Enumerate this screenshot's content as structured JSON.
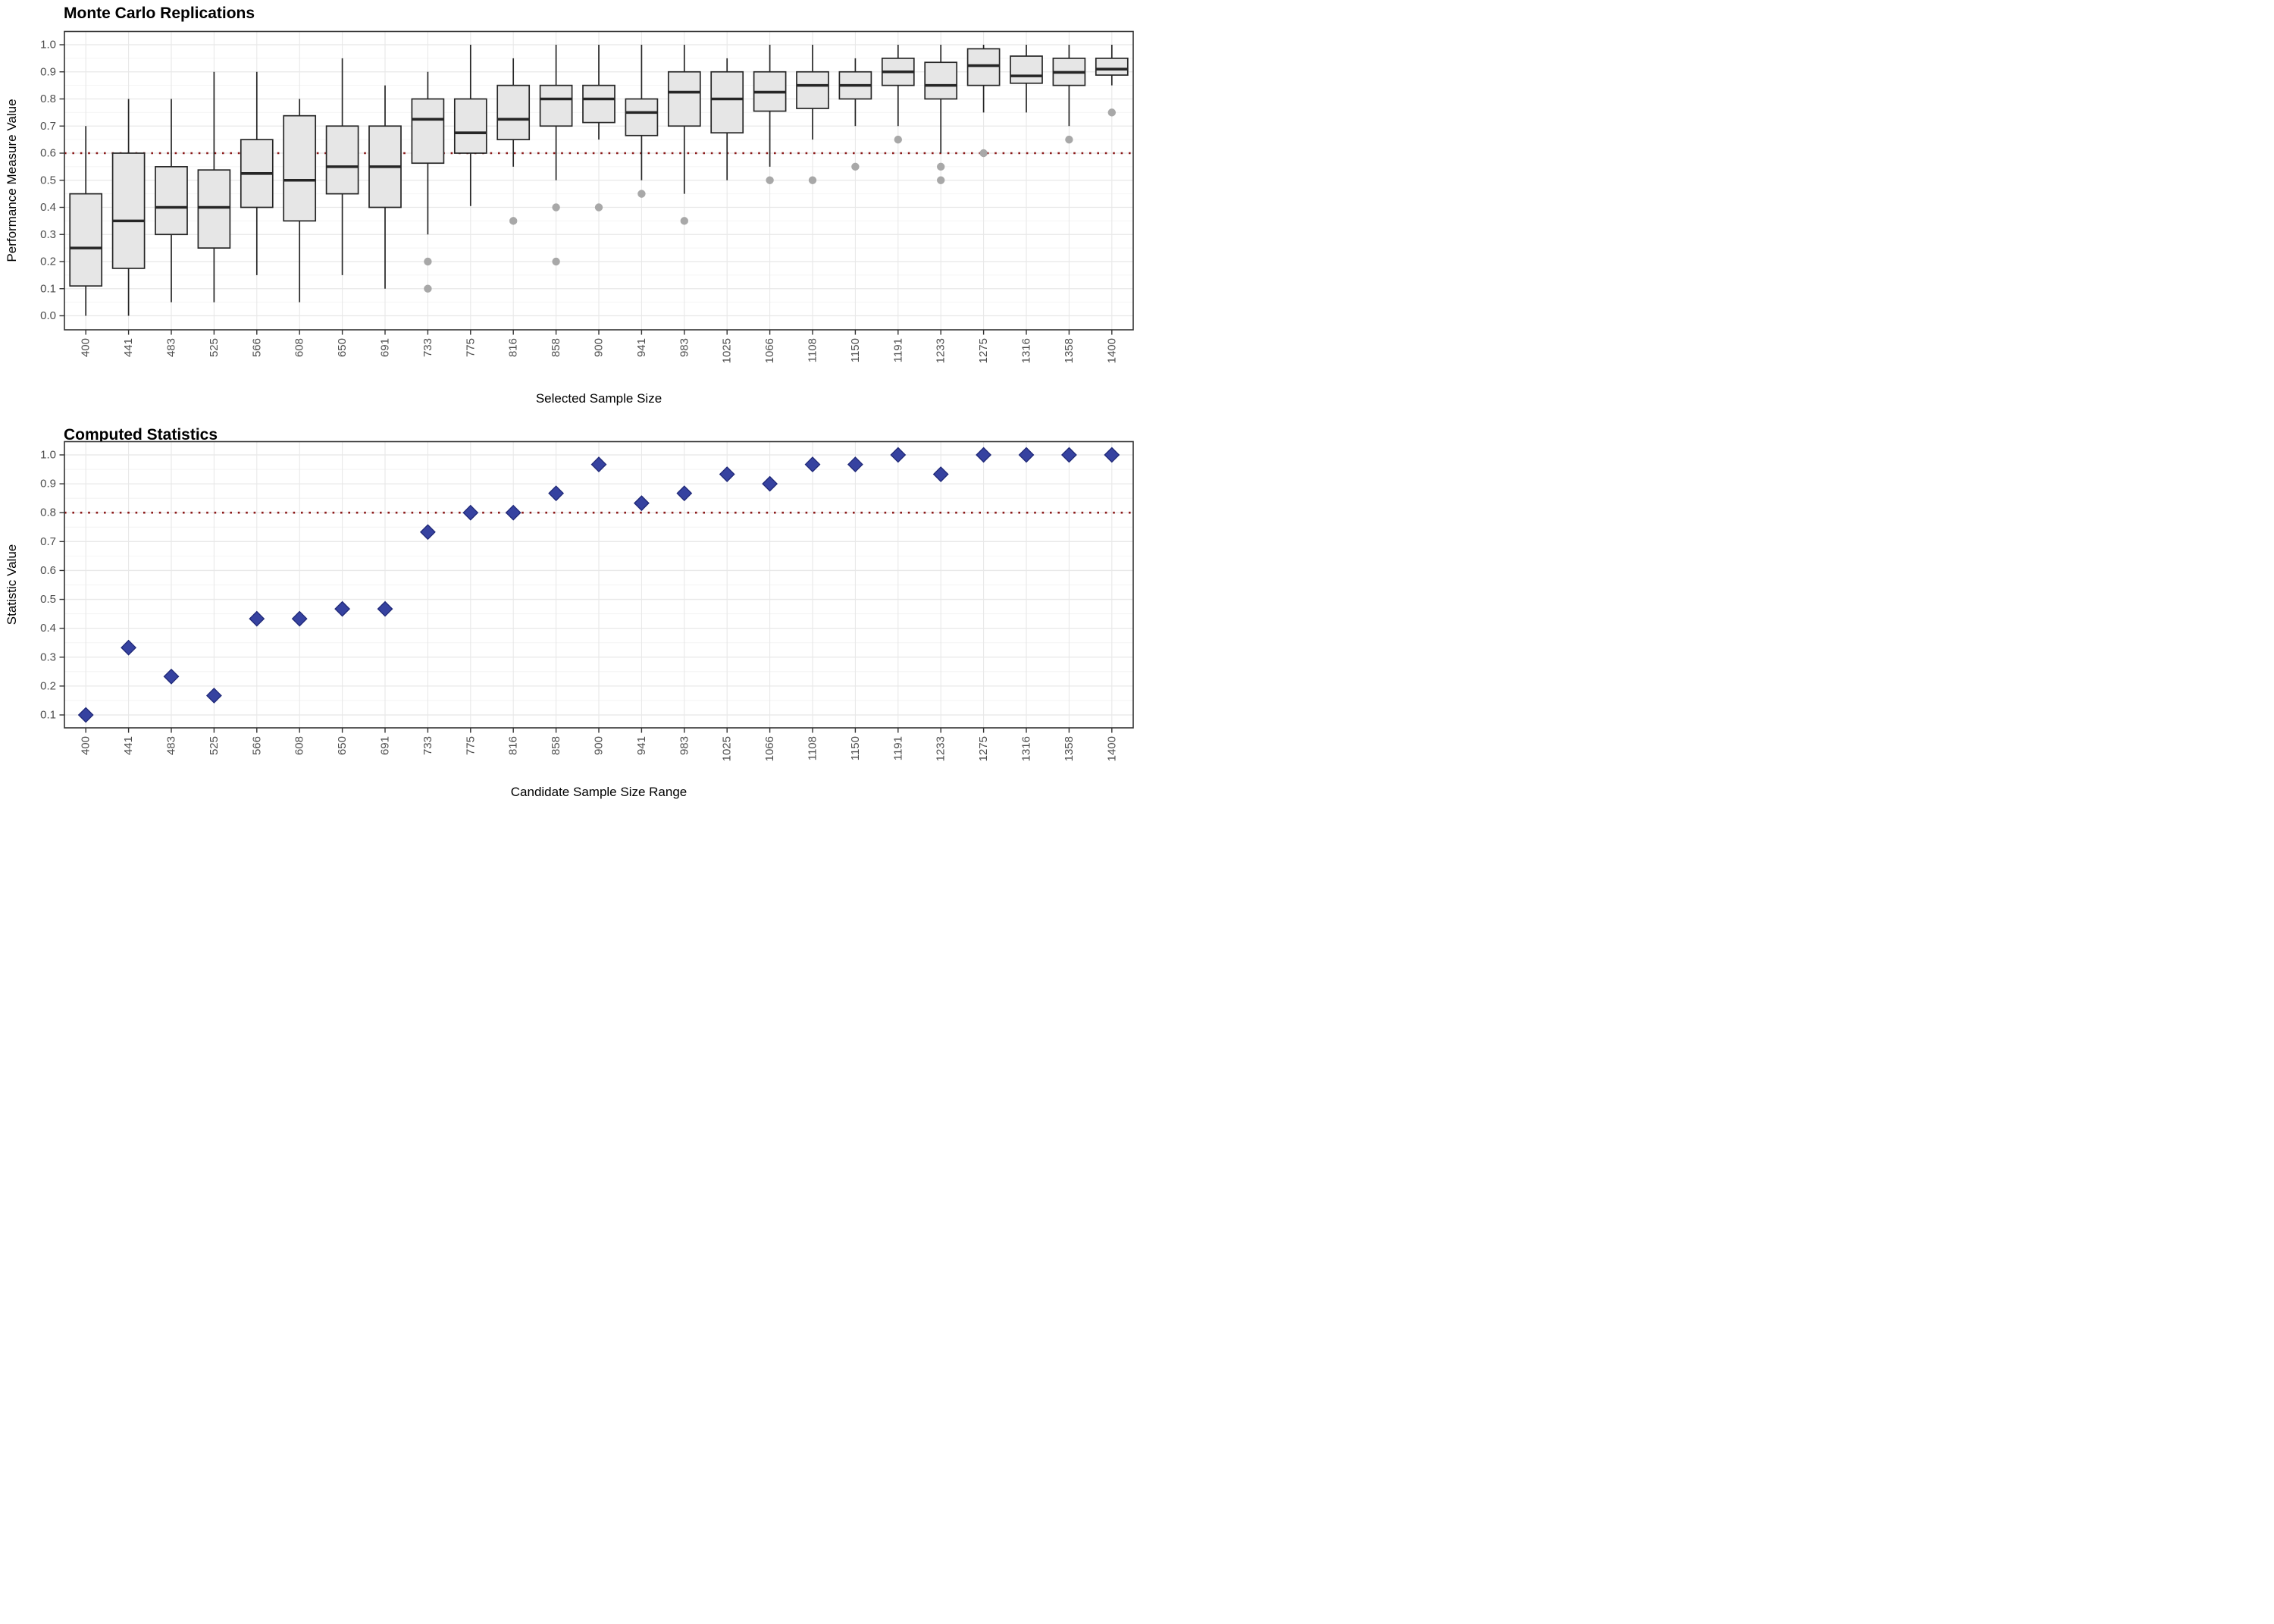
{
  "colors": {
    "panel_background": "#ffffff",
    "panel_border": "#333333",
    "grid_major": "#e8e8e8",
    "grid_minor": "#f4f4f4",
    "tick_mark": "#333333",
    "tick_text": "#4d4d4d",
    "box_fill": "#e6e6e6",
    "box_stroke": "#262626",
    "outlier": "#a8a8a8",
    "diamond_fill": "#3642a0",
    "diamond_stroke": "#1f2877",
    "ref_line": "#8B1A1A"
  },
  "chart_data": [
    {
      "type": "boxplot",
      "title": "Monte Carlo Replications",
      "xlabel": "Selected Sample Size",
      "ylabel": "Performance Measure Value",
      "ylim": [
        0.0,
        1.0
      ],
      "grid": true,
      "ref_line": {
        "y": 0.6,
        "style": "dotted"
      },
      "y_tick_labels": [
        "0.0",
        "0.1",
        "0.2",
        "0.3",
        "0.4",
        "0.5",
        "0.6",
        "0.7",
        "0.8",
        "0.9",
        "1.0"
      ],
      "categories": [
        "400",
        "441",
        "483",
        "525",
        "566",
        "608",
        "650",
        "691",
        "733",
        "775",
        "816",
        "858",
        "900",
        "941",
        "983",
        "1025",
        "1066",
        "1108",
        "1150",
        "1191",
        "1233",
        "1275",
        "1316",
        "1358",
        "1400"
      ],
      "boxes": [
        {
          "min": 0.0,
          "q1": 0.11,
          "median": 0.25,
          "q3": 0.45,
          "max": 0.7,
          "outliers": []
        },
        {
          "min": 0.0,
          "q1": 0.175,
          "median": 0.35,
          "q3": 0.6,
          "max": 0.8,
          "outliers": []
        },
        {
          "min": 0.05,
          "q1": 0.3,
          "median": 0.4,
          "q3": 0.55,
          "max": 0.8,
          "outliers": []
        },
        {
          "min": 0.05,
          "q1": 0.25,
          "median": 0.4,
          "q3": 0.538,
          "max": 0.9,
          "outliers": []
        },
        {
          "min": 0.15,
          "q1": 0.4,
          "median": 0.525,
          "q3": 0.65,
          "max": 0.9,
          "outliers": []
        },
        {
          "min": 0.05,
          "q1": 0.35,
          "median": 0.5,
          "q3": 0.738,
          "max": 0.8,
          "outliers": []
        },
        {
          "min": 0.15,
          "q1": 0.45,
          "median": 0.55,
          "q3": 0.7,
          "max": 0.95,
          "outliers": []
        },
        {
          "min": 0.1,
          "q1": 0.4,
          "median": 0.55,
          "q3": 0.7,
          "max": 0.85,
          "outliers": []
        },
        {
          "min": 0.3,
          "q1": 0.563,
          "median": 0.725,
          "q3": 0.8,
          "max": 0.9,
          "outliers": [
            0.2,
            0.1
          ]
        },
        {
          "min": 0.405,
          "q1": 0.6,
          "median": 0.675,
          "q3": 0.8,
          "max": 1.0,
          "outliers": []
        },
        {
          "min": 0.55,
          "q1": 0.65,
          "median": 0.725,
          "q3": 0.85,
          "max": 0.95,
          "outliers": [
            0.35
          ]
        },
        {
          "min": 0.5,
          "q1": 0.7,
          "median": 0.8,
          "q3": 0.85,
          "max": 1.0,
          "outliers": [
            0.4,
            0.2
          ]
        },
        {
          "min": 0.65,
          "q1": 0.713,
          "median": 0.8,
          "q3": 0.85,
          "max": 1.0,
          "outliers": [
            0.4
          ]
        },
        {
          "min": 0.5,
          "q1": 0.665,
          "median": 0.75,
          "q3": 0.8,
          "max": 1.0,
          "outliers": [
            0.45
          ]
        },
        {
          "min": 0.45,
          "q1": 0.7,
          "median": 0.825,
          "q3": 0.9,
          "max": 1.0,
          "outliers": [
            0.35
          ]
        },
        {
          "min": 0.5,
          "q1": 0.675,
          "median": 0.8,
          "q3": 0.9,
          "max": 0.95,
          "outliers": []
        },
        {
          "min": 0.55,
          "q1": 0.755,
          "median": 0.825,
          "q3": 0.9,
          "max": 1.0,
          "outliers": [
            0.5
          ]
        },
        {
          "min": 0.65,
          "q1": 0.765,
          "median": 0.85,
          "q3": 0.9,
          "max": 1.0,
          "outliers": [
            0.5
          ]
        },
        {
          "min": 0.7,
          "q1": 0.8,
          "median": 0.85,
          "q3": 0.9,
          "max": 0.95,
          "outliers": [
            0.55
          ]
        },
        {
          "min": 0.7,
          "q1": 0.85,
          "median": 0.9,
          "q3": 0.95,
          "max": 1.0,
          "outliers": [
            0.65
          ]
        },
        {
          "min": 0.6,
          "q1": 0.8,
          "median": 0.85,
          "q3": 0.935,
          "max": 1.0,
          "outliers": [
            0.55,
            0.5
          ]
        },
        {
          "min": 0.75,
          "q1": 0.85,
          "median": 0.923,
          "q3": 0.985,
          "max": 1.0,
          "outliers": [
            0.6
          ]
        },
        {
          "min": 0.75,
          "q1": 0.858,
          "median": 0.885,
          "q3": 0.958,
          "max": 1.0,
          "outliers": []
        },
        {
          "min": 0.7,
          "q1": 0.85,
          "median": 0.898,
          "q3": 0.95,
          "max": 1.0,
          "outliers": [
            0.65
          ]
        },
        {
          "min": 0.85,
          "q1": 0.888,
          "median": 0.91,
          "q3": 0.95,
          "max": 1.0,
          "outliers": [
            0.75
          ]
        }
      ]
    },
    {
      "type": "scatter",
      "title": "Computed Statistics",
      "xlabel": "Candidate Sample Size Range",
      "ylabel": "Statistic Value",
      "ylim": [
        0.1,
        1.0
      ],
      "grid": true,
      "marker": "diamond",
      "ref_line": {
        "y": 0.8,
        "style": "dotted"
      },
      "y_tick_labels": [
        "0.1",
        "0.2",
        "0.3",
        "0.4",
        "0.5",
        "0.6",
        "0.7",
        "0.8",
        "0.9",
        "1.0"
      ],
      "categories": [
        "400",
        "441",
        "483",
        "525",
        "566",
        "608",
        "650",
        "691",
        "733",
        "775",
        "816",
        "858",
        "900",
        "941",
        "983",
        "1025",
        "1066",
        "1108",
        "1150",
        "1191",
        "1233",
        "1275",
        "1316",
        "1358",
        "1400"
      ],
      "values": [
        0.1,
        0.333,
        0.233,
        0.167,
        0.433,
        0.433,
        0.467,
        0.467,
        0.733,
        0.8,
        0.8,
        0.867,
        0.967,
        0.833,
        0.867,
        0.933,
        0.9,
        0.967,
        0.967,
        1.0,
        0.933,
        1.0,
        1.0,
        1.0,
        1.0
      ]
    }
  ]
}
